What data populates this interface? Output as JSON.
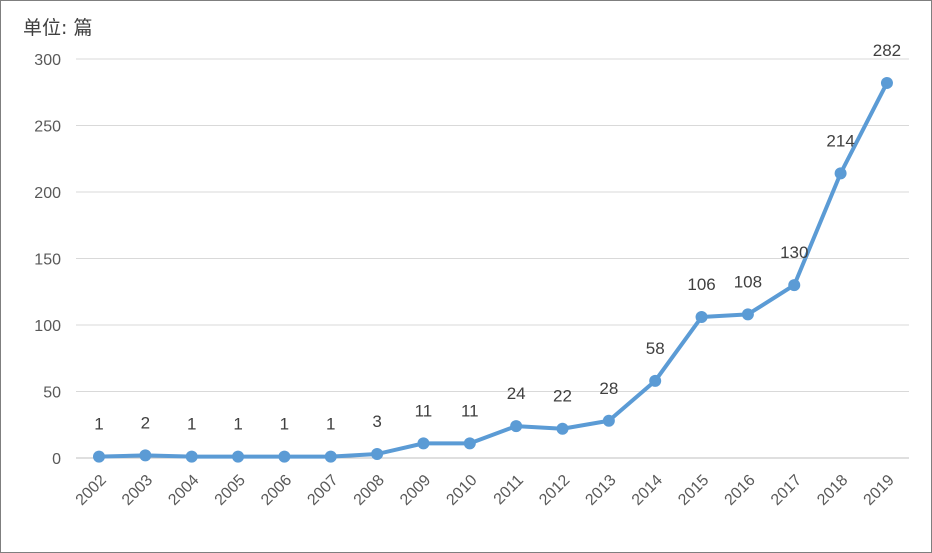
{
  "chart_data": {
    "type": "line",
    "unit_label": "单位: 篇",
    "x": [
      "2002",
      "2003",
      "2004",
      "2005",
      "2006",
      "2007",
      "2008",
      "2009",
      "2010",
      "2011",
      "2012",
      "2013",
      "2014",
      "2015",
      "2016",
      "2017",
      "2018",
      "2019"
    ],
    "series": [
      {
        "values": [
          1,
          2,
          1,
          1,
          1,
          1,
          3,
          11,
          11,
          24,
          22,
          28,
          58,
          106,
          108,
          130,
          214,
          282
        ]
      }
    ],
    "ylim": [
      0,
      300
    ],
    "yticks": [
      0,
      50,
      100,
      150,
      200,
      250,
      300
    ],
    "grid": true,
    "legend": "none",
    "data_labels": true,
    "line_color": "#5b9bd5"
  }
}
